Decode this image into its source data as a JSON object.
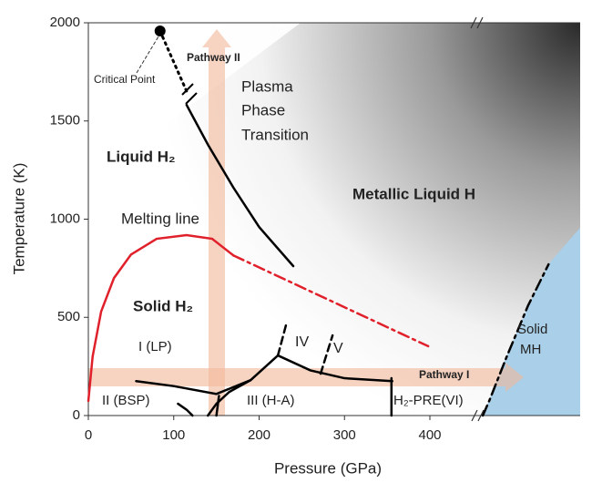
{
  "chart_data": {
    "type": "line",
    "xlabel": "Pressure (GPa)",
    "ylabel": "Temperature (K)",
    "xlim": [
      0,
      576
    ],
    "ylim": [
      0,
      2000
    ],
    "xticks": [
      0,
      100,
      200,
      300,
      400
    ],
    "yticks": [
      0,
      500,
      1000,
      1500,
      2000
    ],
    "series": [
      {
        "color": "#e0202a",
        "style": "solid",
        "x": [
          0,
          5,
          15,
          30,
          50,
          80,
          115,
          145,
          170
        ],
        "values": [
          74,
          300,
          530,
          700,
          820,
          900,
          919,
          900,
          815
        ]
      },
      {
        "color": "#e0202a",
        "style": "dashdot",
        "x": [
          170,
          398
        ],
        "values": [
          815,
          353
        ]
      },
      {
        "color": "#000000",
        "style": "solid",
        "x": [
          115,
          140,
          170,
          200,
          240
        ],
        "values": [
          1582,
          1380,
          1160,
          960,
          761
        ]
      },
      {
        "color": "#000000",
        "style": "dotted",
        "x": [
          84,
          100,
          115
        ],
        "values": [
          1958,
          1800,
          1652
        ]
      },
      {
        "color": "#000000",
        "style": "solid",
        "x": [
          105,
          115,
          122
        ],
        "values": [
          60,
          30,
          0
        ]
      },
      {
        "color": "#000000",
        "style": "solid",
        "x": [
          140,
          150,
          165,
          190,
          222
        ],
        "values": [
          0,
          60,
          120,
          180,
          306
        ]
      },
      {
        "color": "#000000",
        "style": "solid",
        "x": [
          56,
          100,
          150,
          190
        ],
        "values": [
          175,
          150,
          110,
          180
        ]
      },
      {
        "color": "#000000",
        "style": "solid",
        "x": [
          222,
          260,
          300,
          356
        ],
        "values": [
          306,
          230,
          190,
          175
        ]
      },
      {
        "color": "#000000",
        "style": "solid",
        "x": [
          150,
          153
        ],
        "values": [
          0,
          100
        ]
      },
      {
        "color": "#000000",
        "style": "dashed",
        "x": [
          222,
          232
        ],
        "values": [
          306,
          469
        ]
      },
      {
        "color": "#000000",
        "style": "dashed",
        "x": [
          272,
          286
        ],
        "values": [
          213,
          408
        ]
      },
      {
        "color": "#000000",
        "style": "solid",
        "x": [
          355,
          355
        ],
        "values": [
          190,
          0
        ]
      },
      {
        "color": "#000000",
        "style": "dashdot",
        "x": [
          462,
          470,
          490,
          515,
          539
        ],
        "values": [
          0,
          80,
          300,
          560,
          770
        ]
      }
    ],
    "critical_point": {
      "x": 84,
      "value": 1958
    },
    "annotations": [
      "Critical Point",
      "Pathway II",
      "Plasma",
      "Phase",
      "Transition",
      "Liquid H₂",
      "Metallic Liquid H",
      "Melting line",
      "Solid H₂",
      "I (LP)",
      "IV",
      "V",
      "II (BSP)",
      "III (H-A)",
      "H₂-PRE(VI)",
      "Pathway I",
      "Solid",
      "MH"
    ]
  }
}
